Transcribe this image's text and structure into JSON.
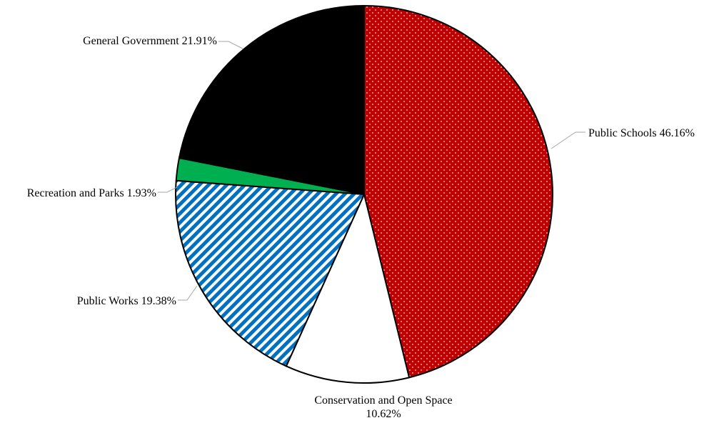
{
  "chart_data": {
    "type": "pie",
    "title": "",
    "start_angle_deg": 0,
    "direction": "clockwise",
    "legend": "none",
    "slices": [
      {
        "name": "Public Schools",
        "value": 46.16,
        "label": "Public Schools 46.16%",
        "color": "#c00000",
        "pattern": "dotted"
      },
      {
        "name": "Conservation and Open Space",
        "value": 10.62,
        "label_lines": [
          "Conservation and Open Space",
          "10.62%"
        ],
        "color": "#ffffff",
        "pattern": "solid"
      },
      {
        "name": "Public Works",
        "value": 19.38,
        "label": "Public Works 19.38%",
        "color": "#0070c0",
        "pattern": "diagonal-stripes"
      },
      {
        "name": "Recreation and Parks",
        "value": 1.93,
        "label": "Recreation and Parks 1.93%",
        "color": "#00b050",
        "pattern": "solid"
      },
      {
        "name": "General Government",
        "value": 21.91,
        "label": "General Government 21.91%",
        "color": "#000000",
        "pattern": "solid"
      }
    ]
  }
}
